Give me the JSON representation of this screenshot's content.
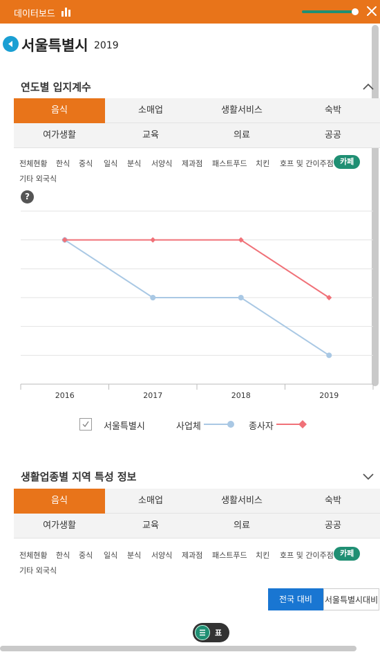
{
  "topbar": {
    "title": "데이터보드",
    "slider_level": 0.93
  },
  "page": {
    "title": "서울특별시",
    "year": "2019"
  },
  "section1": {
    "title": "연도별 입지계수",
    "tabs": [
      "음식",
      "소매업",
      "생활서비스",
      "숙박",
      "여가생활",
      "교육",
      "의료",
      "공공"
    ],
    "active_tab": 0,
    "subcategories": [
      "전체현황",
      "한식",
      "중식",
      "일식",
      "분식",
      "서양식",
      "제과점",
      "패스트푸드",
      "치킨",
      "호프 및 간이주점",
      "카페",
      "기타 외국식"
    ],
    "active_subcategory": "카페",
    "help": "?"
  },
  "chart_data": {
    "type": "line",
    "x": [
      "2016",
      "2017",
      "2018",
      "2019"
    ],
    "series": [
      {
        "name": "사업체",
        "values": [
          5,
          3,
          3,
          1
        ],
        "color": "#a9c8e4"
      },
      {
        "name": "종사자",
        "values": [
          5,
          5,
          5,
          3
        ],
        "color": "#f07178"
      }
    ],
    "ylim": [
      0,
      6
    ],
    "grid": true,
    "legend_placement": "bottom"
  },
  "legend": {
    "region": "서울특별시"
  },
  "section2": {
    "title": "생활업종별 지역 특성 정보",
    "tabs": [
      "음식",
      "소매업",
      "생활서비스",
      "숙박",
      "여가생활",
      "교육",
      "의료",
      "공공"
    ],
    "active_tab": 0,
    "subcategories": [
      "전체현황",
      "한식",
      "중식",
      "일식",
      "분식",
      "서양식",
      "제과점",
      "패스트푸드",
      "치킨",
      "호프 및 간이주점",
      "카페",
      "기타 외국식"
    ],
    "active_subcategory": "카페",
    "compare_buttons": [
      "전국 대비",
      "서울특별시대비"
    ]
  },
  "fab": {
    "label": "표"
  },
  "colors": {
    "brand": "#e8741a",
    "accent": "#1f8f73",
    "blue": "#1976d2"
  }
}
